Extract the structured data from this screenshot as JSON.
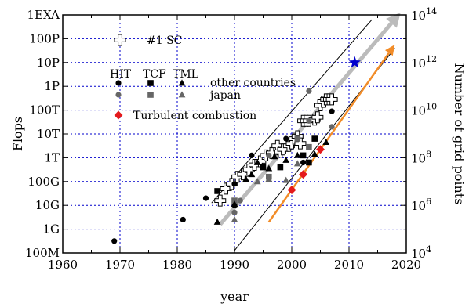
{
  "chart_data": {
    "type": "scatter",
    "xlabel": "year",
    "ylabel": "Flops",
    "y2label": "Number of grid points",
    "xlim": [
      1960,
      2020
    ],
    "ylim_log10": [
      8,
      18
    ],
    "y2lim_log10": [
      4,
      14
    ],
    "grid": true,
    "x_ticks": [
      "1960",
      "1970",
      "1980",
      "1990",
      "2000",
      "2010",
      "2020"
    ],
    "y_ticks": [
      "100M",
      "1G",
      "10G",
      "100G",
      "1T",
      "10T",
      "100T",
      "1P",
      "10P",
      "100P",
      "1EXA"
    ],
    "y2_ticks": [
      {
        "base": "10",
        "exp": "4"
      },
      {
        "base": "10",
        "exp": "6"
      },
      {
        "base": "10",
        "exp": "8"
      },
      {
        "base": "10",
        "exp": "10"
      },
      {
        "base": "10",
        "exp": "12"
      },
      {
        "base": "10",
        "exp": "14"
      }
    ],
    "legend": {
      "sc": "#1 SC",
      "headers": [
        "HIT",
        "TCF",
        "TML"
      ],
      "other": "other countries",
      "japan": "japan",
      "turbulent": "Turbulent combustion"
    },
    "colors": {
      "other": "#000000",
      "japan": "#666666",
      "turbulent": "#e41a1c",
      "sc_trend": "#bbbbbb",
      "turb_trend": "#f28c28",
      "star": "#0000cc",
      "grid": "#0000cc"
    },
    "series": [
      {
        "name": "#1 SC",
        "marker": "cross",
        "points": [
          [
            1987.5,
            10.2
          ],
          [
            1988.5,
            10.7
          ],
          [
            1989.5,
            10.9
          ],
          [
            1990.5,
            11.2
          ],
          [
            1991.5,
            11.3
          ],
          [
            1992.5,
            11.5
          ],
          [
            1993.5,
            11.7
          ],
          [
            1994.5,
            11.85
          ],
          [
            1995.5,
            12.1
          ],
          [
            1996.5,
            12.2
          ],
          [
            1997.5,
            12.5
          ],
          [
            1998,
            12.25
          ],
          [
            1998.5,
            12.35
          ],
          [
            1999.5,
            12.5
          ],
          [
            2000,
            12.6
          ],
          [
            2000.5,
            12.8
          ],
          [
            2001,
            12.9
          ],
          [
            2001.5,
            12.6
          ],
          [
            2002,
            13.55
          ],
          [
            2002.5,
            13.55
          ],
          [
            2003,
            13.55
          ],
          [
            2004,
            13.6
          ],
          [
            2004.5,
            13.7
          ],
          [
            2005,
            14.2
          ],
          [
            2005.5,
            14.35
          ],
          [
            2006,
            14.45
          ],
          [
            2006.5,
            14.45
          ],
          [
            2007,
            14.45
          ]
        ]
      },
      {
        "name": "HIT other countries",
        "marker": "circle",
        "color": "#000000",
        "points": [
          [
            1969,
            8.5
          ],
          [
            1981,
            9.4
          ],
          [
            1985,
            10.3
          ],
          [
            1990,
            10.9
          ],
          [
            1990,
            10.0
          ],
          [
            1993,
            12.1
          ],
          [
            1999,
            12.8
          ],
          [
            2001,
            12.85
          ],
          [
            2002,
            11.8
          ],
          [
            2007,
            13.95
          ]
        ]
      },
      {
        "name": "HIT japan",
        "marker": "circle",
        "color": "#666666",
        "points": [
          [
            1990,
            9.7
          ],
          [
            1991,
            10.2
          ],
          [
            1996,
            12.1
          ],
          [
            2003,
            14.8
          ],
          [
            2003,
            13.55
          ],
          [
            2007,
            13.3
          ]
        ]
      },
      {
        "name": "TCF other countries",
        "marker": "square",
        "color": "#000000",
        "points": [
          [
            1987,
            10.6
          ],
          [
            1995,
            11.6
          ],
          [
            1998,
            11.6
          ],
          [
            2002,
            12.1
          ],
          [
            2003,
            11.8
          ],
          [
            2004,
            12.8
          ]
        ]
      },
      {
        "name": "TCF japan",
        "marker": "square",
        "color": "#666666",
        "points": [
          [
            1990,
            10.2
          ],
          [
            1996,
            11.2
          ],
          [
            2001,
            12.8
          ],
          [
            2003,
            12.45
          ]
        ]
      },
      {
        "name": "TML other countries",
        "marker": "triangle",
        "color": "#000000",
        "points": [
          [
            1987,
            9.3
          ],
          [
            1990,
            10.05
          ],
          [
            1992,
            11.1
          ],
          [
            1993,
            11.3
          ],
          [
            1994,
            11.8
          ],
          [
            1996,
            11.55
          ],
          [
            1997,
            12.05
          ],
          [
            1999,
            11.9
          ],
          [
            2001,
            12.1
          ],
          [
            2004,
            12.15
          ],
          [
            2006,
            12.65
          ]
        ]
      },
      {
        "name": "TML japan",
        "marker": "triangle",
        "color": "#666666",
        "points": [
          [
            1990,
            9.4
          ],
          [
            1994,
            11.0
          ],
          [
            1996,
            11.1
          ],
          [
            1999,
            11.05
          ],
          [
            2001,
            11.75
          ]
        ]
      },
      {
        "name": "Turbulent combustion",
        "marker": "diamond",
        "color": "#e41a1c",
        "points": [
          [
            2000,
            10.65
          ],
          [
            2002,
            11.3
          ],
          [
            2005,
            12.35
          ]
        ]
      }
    ],
    "star": {
      "x": 2011,
      "y": 16.0
    },
    "trend_arrows": [
      {
        "type": "sc",
        "from": [
          1987.5,
          9.2
        ],
        "to": [
          2019,
          18.1
        ]
      },
      {
        "type": "turb",
        "from": [
          1996,
          9.3
        ],
        "to": [
          2018,
          16.75
        ]
      }
    ],
    "guide_lines": [
      {
        "from": [
          1986,
          10.1
        ],
        "to": [
          2014,
          17.8
        ]
      },
      {
        "from": [
          1990,
          8.1
        ],
        "to": [
          2018,
          16.6
        ]
      }
    ]
  }
}
